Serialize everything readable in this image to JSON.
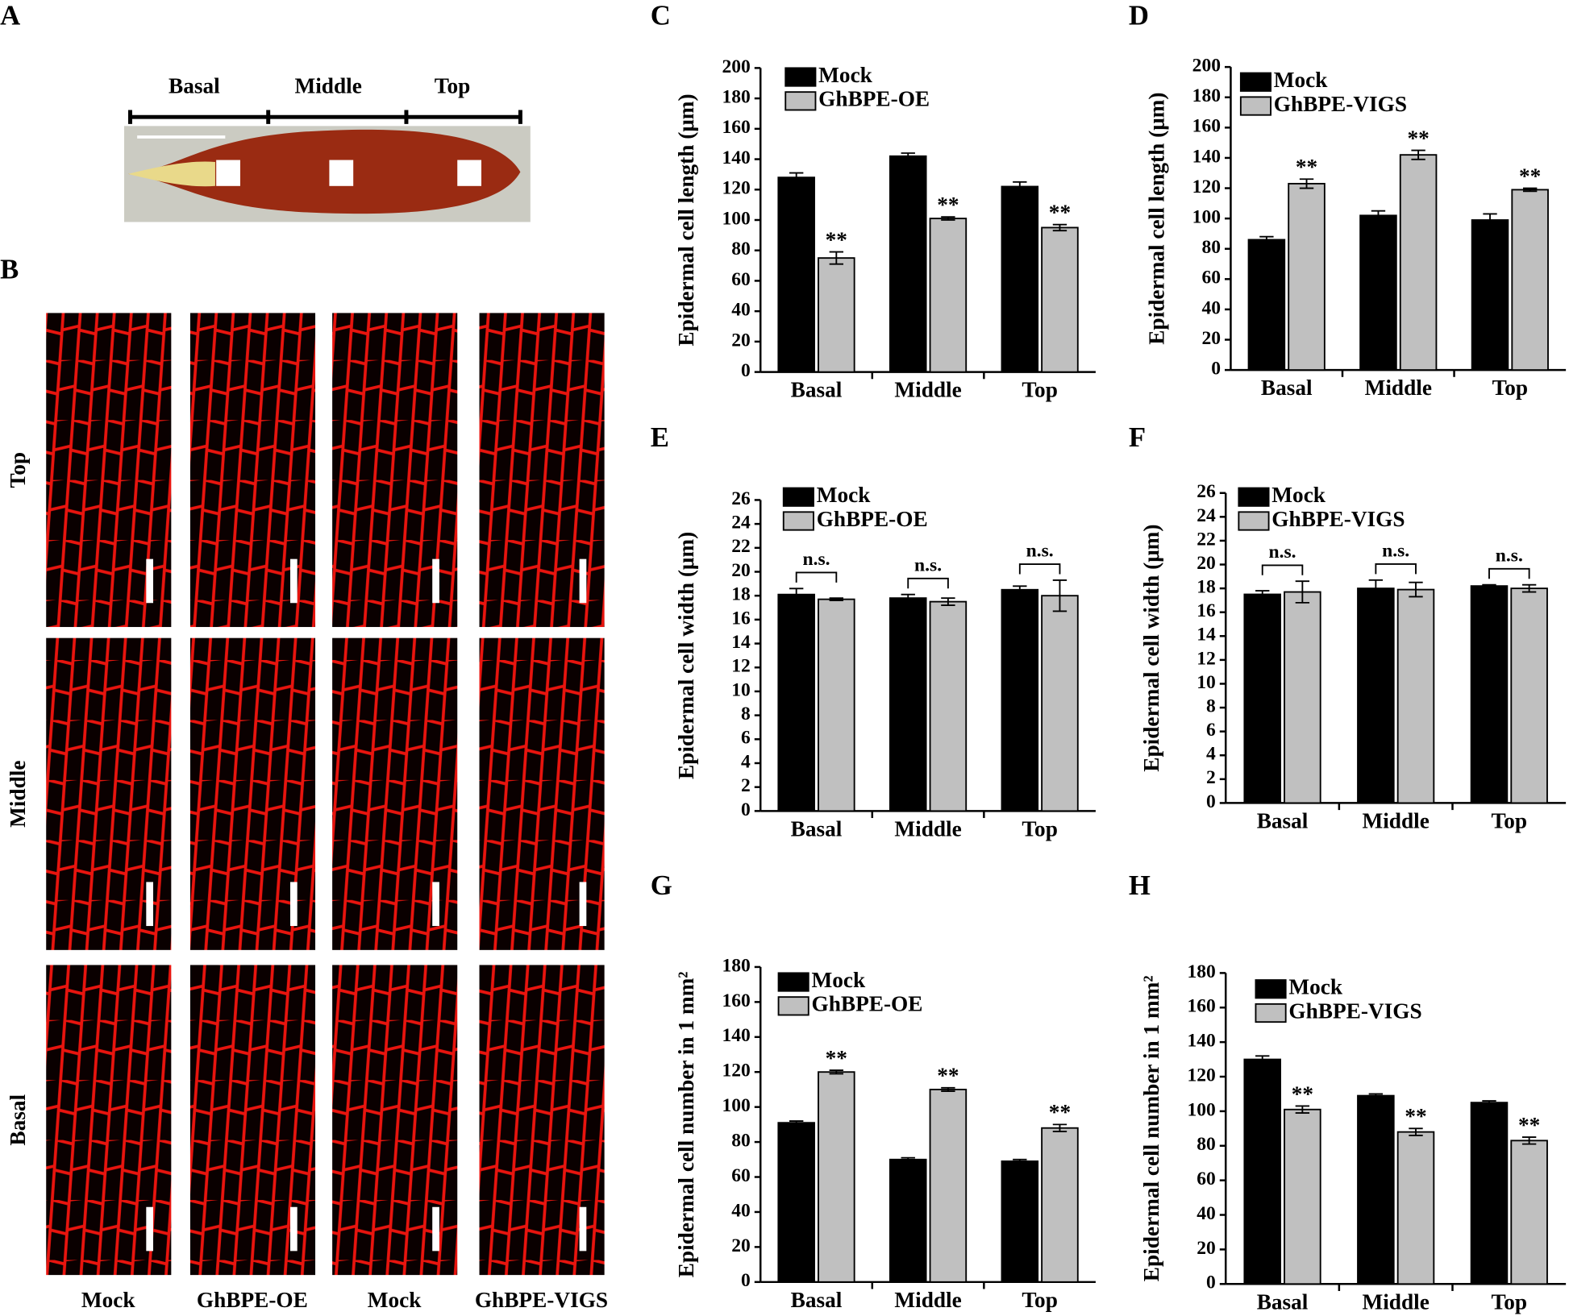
{
  "panel_a": {
    "label": "A",
    "regions": [
      "Basal",
      "Middle",
      "Top"
    ]
  },
  "panel_b": {
    "label": "B",
    "rows": [
      "Top",
      "Middle",
      "Basal"
    ],
    "columns": [
      "Mock",
      "GhBPE-OE",
      "Mock",
      "GhBPE-VIGS"
    ]
  },
  "chart_data": [
    {
      "type": "bar",
      "panel": "C",
      "ylabel": "Epidermal cell length (μm)",
      "categories": [
        "Basal",
        "Middle",
        "Top"
      ],
      "series": [
        {
          "name": "Mock",
          "color": "#000000",
          "values": [
            128,
            142,
            122
          ],
          "errors": [
            3,
            2,
            3
          ]
        },
        {
          "name": "GhBPE-OE",
          "color": "#c0c0c0",
          "values": [
            75,
            101,
            95
          ],
          "errors": [
            4,
            1,
            2
          ]
        }
      ],
      "significance": [
        "**",
        "**",
        "**"
      ],
      "bracket": false,
      "ylim": [
        0,
        200
      ],
      "yticks": [
        0,
        20,
        40,
        60,
        80,
        100,
        120,
        140,
        160,
        180,
        200
      ]
    },
    {
      "type": "bar",
      "panel": "D",
      "ylabel": "Epidermal cell length (μm)",
      "categories": [
        "Basal",
        "Middle",
        "Top"
      ],
      "series": [
        {
          "name": "Mock",
          "color": "#000000",
          "values": [
            86,
            102,
            99
          ],
          "errors": [
            2,
            3,
            4
          ]
        },
        {
          "name": "GhBPE-VIGS",
          "color": "#c0c0c0",
          "values": [
            123,
            142,
            119
          ],
          "errors": [
            3,
            3,
            1
          ]
        }
      ],
      "significance": [
        "**",
        "**",
        "**"
      ],
      "bracket": false,
      "ylim": [
        0,
        200
      ],
      "yticks": [
        0,
        20,
        40,
        60,
        80,
        100,
        120,
        140,
        160,
        180,
        200
      ]
    },
    {
      "type": "bar",
      "panel": "E",
      "ylabel": "Epidermal cell width (μm)",
      "categories": [
        "Basal",
        "Middle",
        "Top"
      ],
      "series": [
        {
          "name": "Mock",
          "color": "#000000",
          "values": [
            18.1,
            17.8,
            18.5
          ],
          "errors": [
            0.5,
            0.3,
            0.3
          ]
        },
        {
          "name": "GhBPE-OE",
          "color": "#c0c0c0",
          "values": [
            17.7,
            17.5,
            18.0
          ],
          "errors": [
            0.1,
            0.3,
            1.3
          ]
        }
      ],
      "significance": [
        "n.s.",
        "n.s.",
        "n.s."
      ],
      "bracket": true,
      "ylim": [
        0,
        26
      ],
      "yticks": [
        0,
        2,
        4,
        6,
        8,
        10,
        12,
        14,
        16,
        18,
        20,
        22,
        24,
        26
      ]
    },
    {
      "type": "bar",
      "panel": "F",
      "ylabel": "Epidermal cell width (μm)",
      "categories": [
        "Basal",
        "Middle",
        "Top"
      ],
      "series": [
        {
          "name": "Mock",
          "color": "#000000",
          "values": [
            17.5,
            18.0,
            18.2
          ],
          "errors": [
            0.3,
            0.7,
            0.1
          ]
        },
        {
          "name": "GhBPE-VIGS",
          "color": "#c0c0c0",
          "values": [
            17.7,
            17.9,
            18.0
          ],
          "errors": [
            0.9,
            0.6,
            0.3
          ]
        }
      ],
      "significance": [
        "n.s.",
        "n.s.",
        "n.s."
      ],
      "bracket": true,
      "ylim": [
        0,
        26
      ],
      "yticks": [
        0,
        2,
        4,
        6,
        8,
        10,
        12,
        14,
        16,
        18,
        20,
        22,
        24,
        26
      ]
    },
    {
      "type": "bar",
      "panel": "G",
      "ylabel": "Epidermal cell number in 1 mm²",
      "categories": [
        "Basal",
        "Middle",
        "Top"
      ],
      "series": [
        {
          "name": "Mock",
          "color": "#000000",
          "values": [
            91,
            70,
            69
          ],
          "errors": [
            1,
            1,
            1
          ]
        },
        {
          "name": "GhBPE-OE",
          "color": "#c0c0c0",
          "values": [
            120,
            110,
            88
          ],
          "errors": [
            1,
            1,
            2
          ]
        }
      ],
      "significance": [
        "**",
        "**",
        "**"
      ],
      "bracket": false,
      "ylim": [
        0,
        180
      ],
      "yticks": [
        0,
        20,
        40,
        60,
        80,
        100,
        120,
        140,
        160,
        180
      ]
    },
    {
      "type": "bar",
      "panel": "H",
      "ylabel": "Epidermal cell number in 1 mm²",
      "categories": [
        "Basal",
        "Middle",
        "Top"
      ],
      "series": [
        {
          "name": "Mock",
          "color": "#000000",
          "values": [
            130,
            109,
            105
          ],
          "errors": [
            2,
            1,
            1
          ]
        },
        {
          "name": "GhBPE-VIGS",
          "color": "#c0c0c0",
          "values": [
            101,
            88,
            83
          ],
          "errors": [
            2,
            2,
            2
          ]
        }
      ],
      "significance": [
        "**",
        "**",
        "**"
      ],
      "bracket": false,
      "ylim": [
        0,
        180
      ],
      "yticks": [
        0,
        20,
        40,
        60,
        80,
        100,
        120,
        140,
        160,
        180
      ]
    }
  ]
}
